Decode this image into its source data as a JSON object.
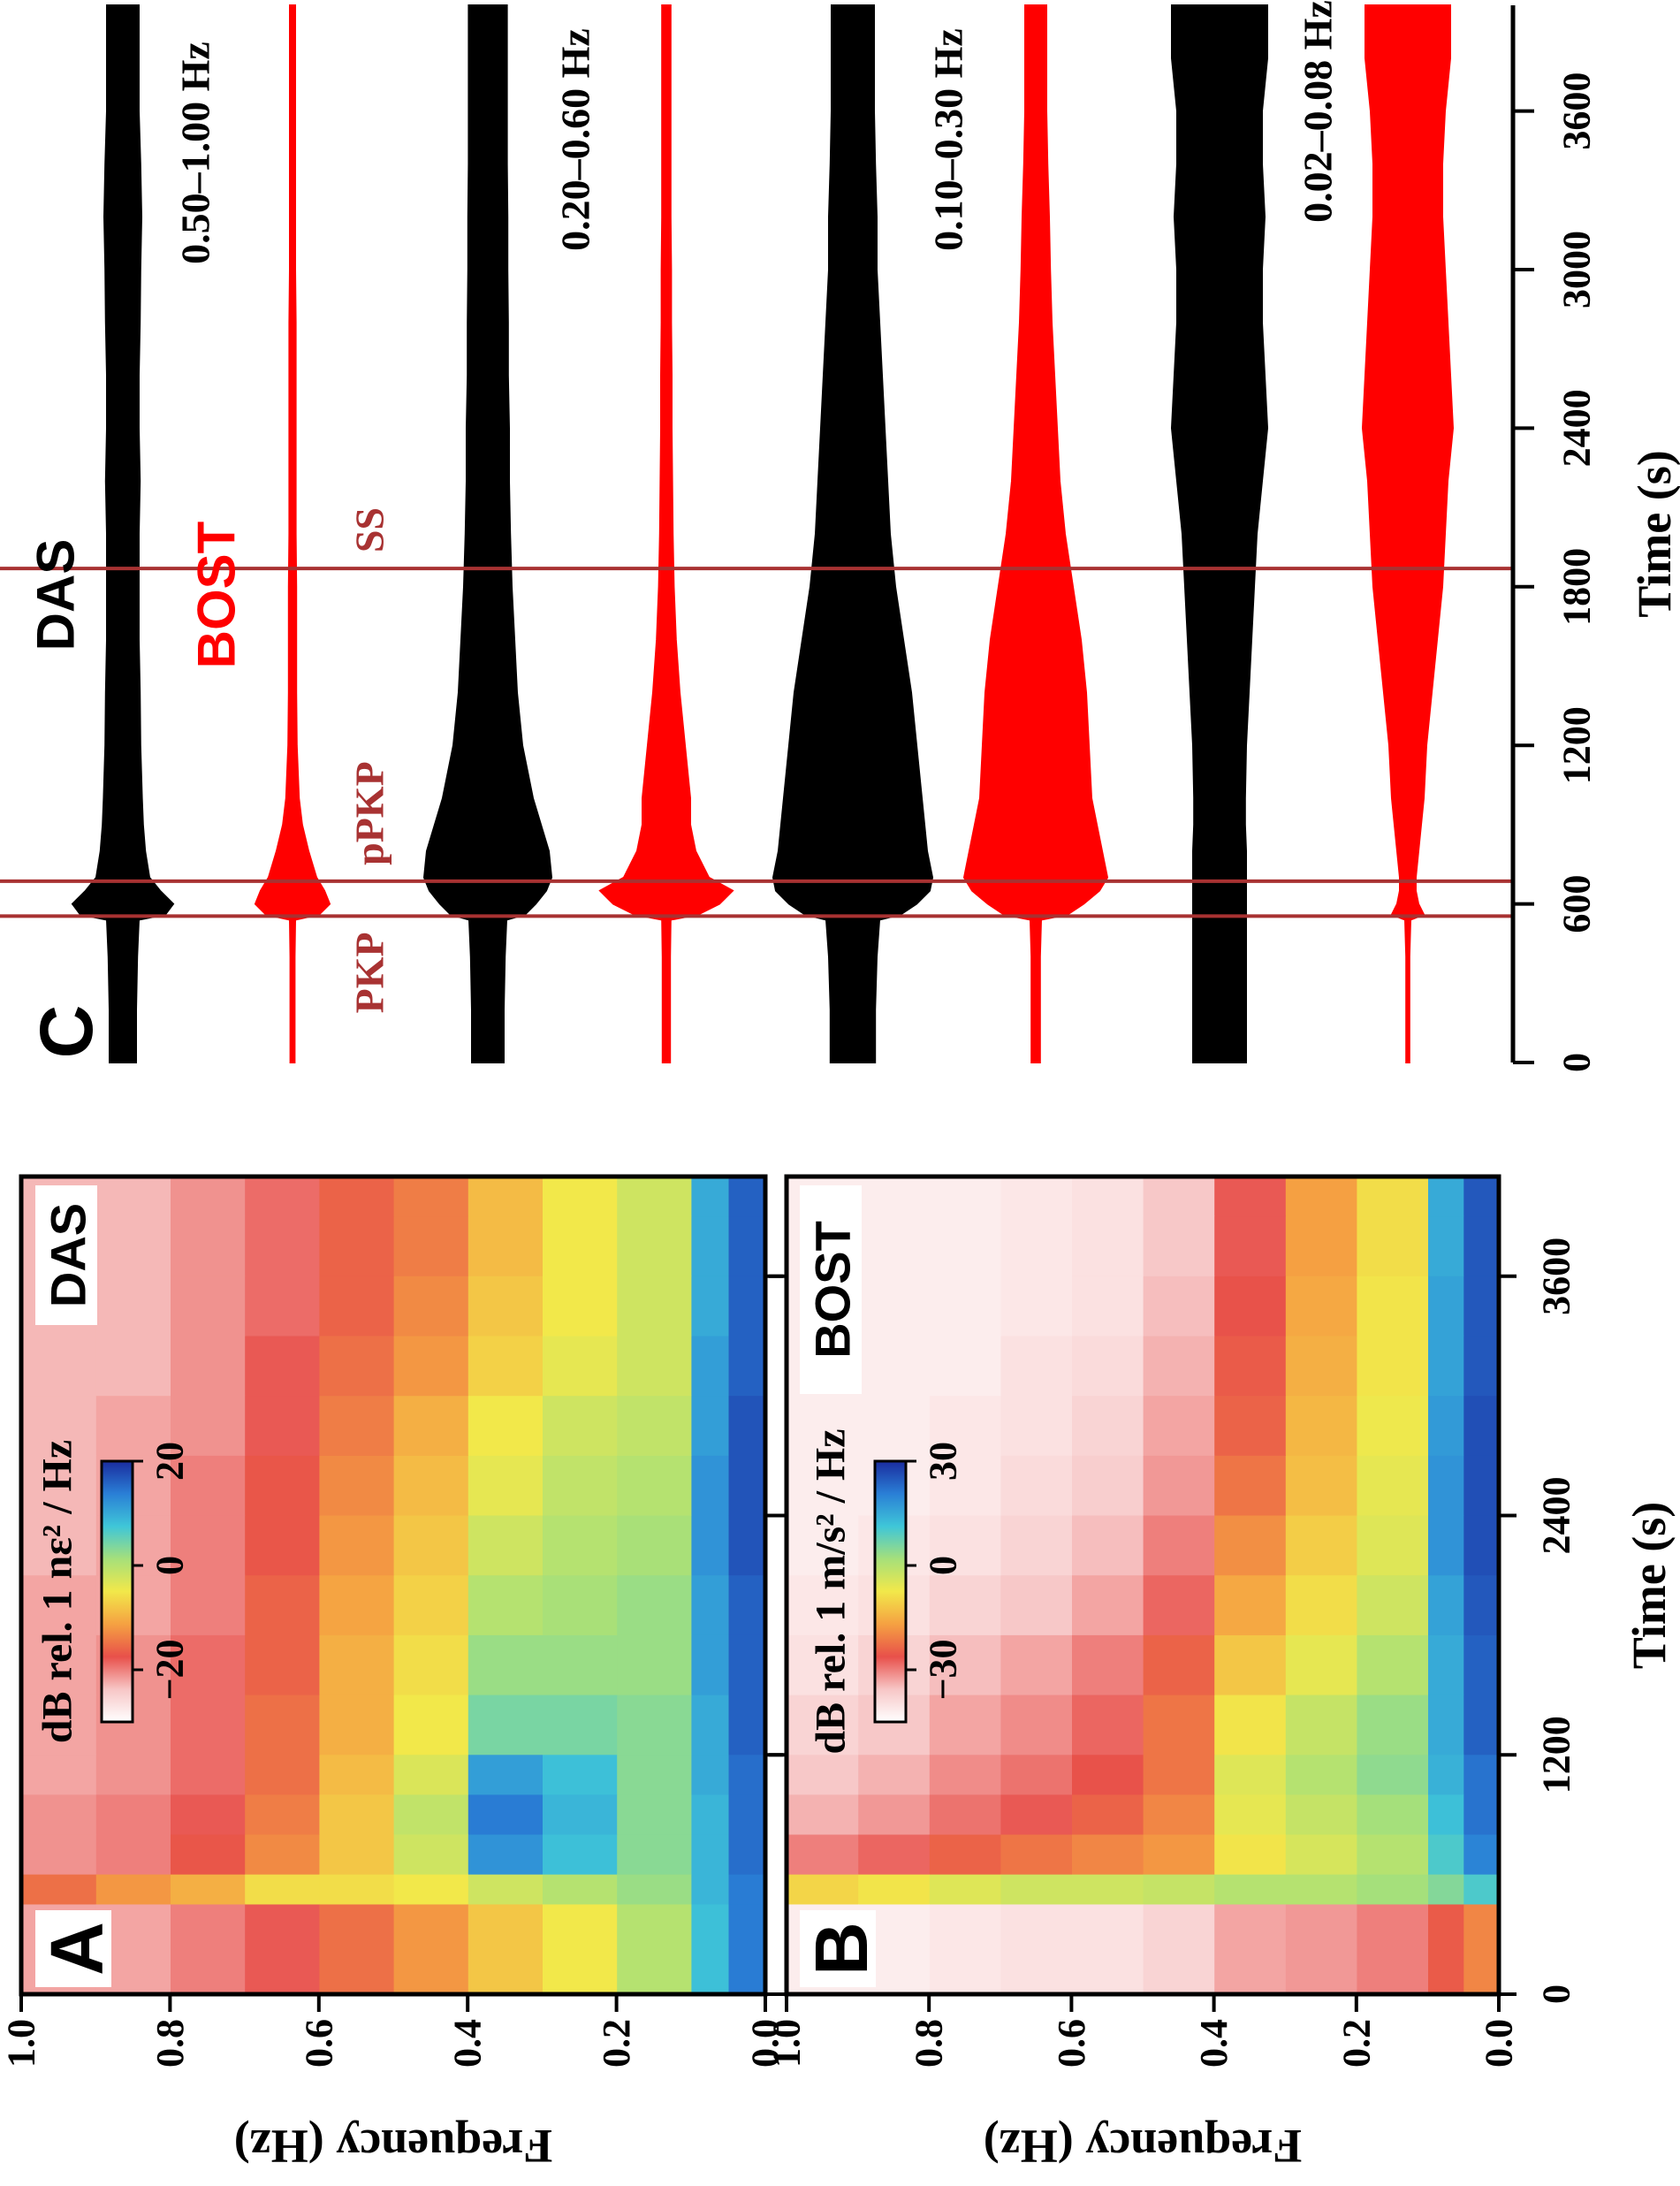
{
  "chart_data": [
    {
      "type": "heatmap",
      "title": "A",
      "label": "DAS",
      "ylabel": "Frequency (Hz)",
      "xlim": [
        0,
        4100
      ],
      "ylim": [
        0,
        1
      ],
      "yticks": [
        {
          "value": 0,
          "label": "0.0"
        },
        0.2,
        0.4,
        0.6,
        0.8,
        {
          "value": 1,
          "label": "1.0"
        }
      ],
      "x_edges": [
        0,
        450,
        600,
        800,
        1000,
        1200,
        1500,
        1800,
        2100,
        2400,
        2700,
        3000,
        3300,
        3600,
        3900,
        4100
      ],
      "y_edges": [
        0,
        0.05,
        0.1,
        0.2,
        0.3,
        0.4,
        0.5,
        0.6,
        0.7,
        0.8,
        0.9,
        1.0
      ],
      "values": [
        [
          14,
          14,
          15,
          15,
          15,
          16,
          16,
          16,
          17,
          17,
          17,
          16,
          16,
          16,
          16
        ],
        [
          8,
          9,
          9,
          9,
          10,
          10,
          11,
          11,
          12,
          12,
          11,
          11,
          10,
          10,
          10
        ],
        [
          0,
          2,
          3,
          3,
          3,
          3,
          2,
          2,
          1,
          0,
          -1,
          -2,
          -2,
          -2,
          -2
        ],
        [
          -5,
          0,
          8,
          9,
          8,
          4,
          2,
          1,
          0,
          -1,
          -2,
          -4,
          -5,
          -5,
          -5
        ],
        [
          -8,
          -2,
          12,
          14,
          11,
          4,
          2,
          0,
          -2,
          -4,
          -5,
          -7,
          -8,
          -9,
          -9
        ],
        [
          -12,
          -5,
          -2,
          -1,
          -3,
          -5,
          -6,
          -7,
          -8,
          -9,
          -10,
          -12,
          -13,
          -14,
          -14
        ],
        [
          -15,
          -6,
          -8,
          -8,
          -9,
          -10,
          -10,
          -11,
          -12,
          -13,
          -14,
          -15,
          -16,
          -16,
          -16
        ],
        [
          -18,
          -6,
          -13,
          -14,
          -15,
          -15,
          -16,
          -16,
          -17,
          -17,
          -18,
          -18,
          -19,
          -19,
          -19
        ],
        [
          -20,
          -10,
          -17,
          -18,
          -19,
          -19,
          -19,
          -20,
          -20,
          -20,
          -21,
          -21,
          -21,
          -21,
          -21
        ],
        [
          -22,
          -12,
          -20,
          -20,
          -21,
          -21,
          -21,
          -22,
          -22,
          -22,
          -22,
          -23,
          -23,
          -23,
          -23
        ],
        [
          -22,
          -15,
          -21,
          -21,
          -22,
          -22,
          -22,
          -22,
          -23,
          -23,
          -23,
          -23,
          -23,
          -23,
          -23
        ]
      ],
      "colormap": [
        "#ffffff",
        "#f7c6c6",
        "#e8504a",
        "#f5a142",
        "#f2e84a",
        "#a6e07a",
        "#3fc6d8",
        "#2a7fd6",
        "#1a2c9e"
      ],
      "colorbar": {
        "label": "dB rel. 1 nε² / Hz",
        "lim": [
          -30,
          20
        ],
        "ticks": [
          {
            "value": -20,
            "label": "−20"
          },
          0,
          20
        ]
      }
    },
    {
      "type": "heatmap",
      "title": "B",
      "label": "BOST",
      "ylabel": "Frequency (Hz)",
      "xlabel": "Time (s)",
      "xlim": [
        0,
        4100
      ],
      "ylim": [
        0,
        1
      ],
      "xticks": [
        0,
        1200,
        2400,
        3600
      ],
      "yticks": [
        {
          "value": 0,
          "label": "0.0"
        },
        0.2,
        0.4,
        0.6,
        0.8,
        {
          "value": 1,
          "label": "1.0"
        }
      ],
      "x_edges": [
        0,
        450,
        600,
        800,
        1000,
        1200,
        1500,
        1800,
        2100,
        2400,
        2700,
        3000,
        3300,
        3600,
        3900,
        4100
      ],
      "y_edges": [
        0,
        0.05,
        0.1,
        0.2,
        0.3,
        0.4,
        0.5,
        0.6,
        0.7,
        0.8,
        0.9,
        1.0
      ],
      "values": [
        [
          -20,
          10,
          20,
          22,
          22,
          24,
          24,
          25,
          26,
          26,
          26,
          25,
          25,
          25,
          25
        ],
        [
          -25,
          5,
          10,
          12,
          14,
          15,
          15,
          16,
          18,
          18,
          17,
          16,
          16,
          15,
          15
        ],
        [
          -30,
          2,
          0,
          2,
          4,
          3,
          0,
          -3,
          -5,
          -6,
          -7,
          -8,
          -8,
          -9,
          -9
        ],
        [
          -32,
          0,
          -4,
          -2,
          0,
          -2,
          -6,
          -9,
          -11,
          -13,
          -14,
          -15,
          -16,
          -17,
          -17
        ],
        [
          -33,
          0,
          -8,
          -6,
          -5,
          -8,
          -12,
          -16,
          -19,
          -22,
          -24,
          -25,
          -26,
          -27,
          -27
        ],
        [
          -38,
          -2,
          -18,
          -20,
          -22,
          -22,
          -24,
          -28,
          -30,
          -32,
          -33,
          -34,
          -35,
          -36,
          -36
        ],
        [
          -40,
          -3,
          -20,
          -24,
          -26,
          -28,
          -30,
          -33,
          -35,
          -37,
          -38,
          -39,
          -40,
          -40,
          -40
        ],
        [
          -40,
          -3,
          -22,
          -27,
          -29,
          -31,
          -33,
          -36,
          -38,
          -39,
          -40,
          -40,
          -41,
          -41,
          -41
        ],
        [
          -41,
          -5,
          -24,
          -29,
          -31,
          -33,
          -35,
          -38,
          -40,
          -41,
          -41,
          -42,
          -42,
          -42,
          -42
        ],
        [
          -42,
          -8,
          -28,
          -32,
          -34,
          -36,
          -38,
          -40,
          -41,
          -42,
          -42,
          -42,
          -42,
          -42,
          -42
        ],
        [
          -42,
          -10,
          -30,
          -34,
          -36,
          -38,
          -40,
          -41,
          -42,
          -42,
          -42,
          -42,
          -42,
          -42,
          -42
        ]
      ],
      "colormap": [
        "#ffffff",
        "#f7c6c6",
        "#e8504a",
        "#f5a142",
        "#f2e84a",
        "#a6e07a",
        "#3fc6d8",
        "#2a7fd6",
        "#1a2c9e"
      ],
      "colorbar": {
        "label": "dB rel. 1 m/s² / Hz",
        "lim": [
          -45,
          30
        ],
        "ticks": [
          {
            "value": -30,
            "label": "−30"
          },
          0,
          30
        ]
      }
    },
    {
      "type": "waveform",
      "title": "C",
      "xlabel": "Time (s)",
      "xlim": [
        0,
        4000
      ],
      "xticks": [
        0,
        600,
        1200,
        1800,
        2400,
        3000,
        3600
      ],
      "x": [
        0,
        200,
        400,
        540,
        560,
        600,
        650,
        700,
        800,
        900,
        1000,
        1200,
        1400,
        1600,
        1800,
        2000,
        2200,
        2400,
        2600,
        2800,
        3000,
        3200,
        3400,
        3600,
        3800,
        4000
      ],
      "bands": [
        "0.50–1.00 Hz",
        "0.20–0.60 Hz",
        "0.10–0.30 Hz",
        "0.02–0.08 Hz"
      ],
      "phases": [
        {
          "name": "PKP",
          "time": 554
        },
        {
          "name": "pPKP",
          "time": 686
        },
        {
          "name": "SS",
          "time": 1869
        }
      ],
      "phase_color": "#a83232",
      "series": [
        {
          "name": "DAS",
          "color": "#000000",
          "values": [
            0.25,
            0.25,
            0.27,
            0.3,
            0.8,
            0.95,
            0.7,
            0.5,
            0.42,
            0.38,
            0.36,
            0.33,
            0.32,
            0.3,
            0.3,
            0.3,
            0.32,
            0.3,
            0.3,
            0.32,
            0.33,
            0.35,
            0.33,
            0.3,
            0.3,
            0.3
          ]
        },
        {
          "name": "BOST",
          "color": "#ff0000",
          "values": [
            0.04,
            0.04,
            0.04,
            0.05,
            0.5,
            0.7,
            0.6,
            0.45,
            0.3,
            0.18,
            0.12,
            0.08,
            0.07,
            0.07,
            0.07,
            0.06,
            0.06,
            0.06,
            0.06,
            0.06,
            0.05,
            0.05,
            0.05,
            0.05,
            0.05,
            0.05
          ]
        },
        {
          "name": "DAS",
          "color": "#000000",
          "values": [
            0.3,
            0.3,
            0.32,
            0.35,
            0.7,
            0.9,
            1.1,
            1.2,
            1.15,
            1.0,
            0.85,
            0.65,
            0.55,
            0.5,
            0.45,
            0.42,
            0.4,
            0.4,
            0.38,
            0.38,
            0.37,
            0.37,
            0.36,
            0.36,
            0.36,
            0.36
          ]
        },
        {
          "name": "BOST",
          "color": "#ff0000",
          "values": [
            0.07,
            0.07,
            0.07,
            0.08,
            0.6,
            1.0,
            1.25,
            0.8,
            0.55,
            0.45,
            0.45,
            0.35,
            0.25,
            0.18,
            0.14,
            0.12,
            0.11,
            0.1,
            0.1,
            0.09,
            0.09,
            0.08,
            0.08,
            0.08,
            0.08,
            0.08
          ]
        },
        {
          "name": "DAS",
          "color": "#000000",
          "values": [
            0.42,
            0.42,
            0.45,
            0.5,
            0.9,
            1.2,
            1.45,
            1.5,
            1.4,
            1.35,
            1.3,
            1.2,
            1.1,
            0.95,
            0.8,
            0.7,
            0.65,
            0.6,
            0.55,
            0.5,
            0.45,
            0.45,
            0.42,
            0.4,
            0.4,
            0.4
          ]
        },
        {
          "name": "BOST",
          "color": "#ff0000",
          "values": [
            0.08,
            0.08,
            0.08,
            0.1,
            0.6,
            0.9,
            1.2,
            1.35,
            1.25,
            1.15,
            1.05,
            1.0,
            0.95,
            0.85,
            0.7,
            0.55,
            0.45,
            0.4,
            0.35,
            0.3,
            0.27,
            0.25,
            0.22,
            0.2,
            0.2,
            0.2
          ]
        },
        {
          "name": "DAS",
          "color": "#000000",
          "values": [
            0.5,
            0.5,
            0.5,
            0.5,
            0.5,
            0.5,
            0.5,
            0.5,
            0.5,
            0.48,
            0.48,
            0.5,
            0.55,
            0.6,
            0.65,
            0.7,
            0.8,
            0.9,
            0.85,
            0.8,
            0.8,
            0.85,
            0.8,
            0.8,
            0.9,
            0.9
          ]
        },
        {
          "name": "BOST",
          "color": "#ff0000",
          "values": [
            0.03,
            0.03,
            0.03,
            0.05,
            0.3,
            0.2,
            0.15,
            0.15,
            0.2,
            0.25,
            0.3,
            0.35,
            0.45,
            0.55,
            0.65,
            0.7,
            0.75,
            0.85,
            0.8,
            0.75,
            0.7,
            0.65,
            0.65,
            0.7,
            0.8,
            0.8
          ]
        }
      ]
    }
  ]
}
